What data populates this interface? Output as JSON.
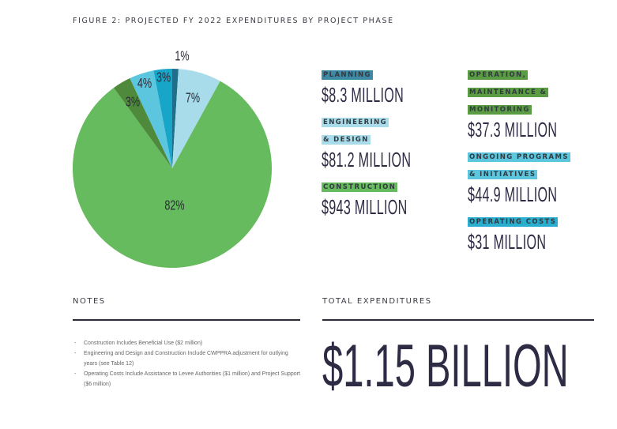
{
  "title": "FIGURE 2: PROJECTED FY 2022 EXPENDITURES BY PROJECT PHASE",
  "chart_data": {
    "type": "pie",
    "title": "FIGURE 2: PROJECTED FY 2022 EXPENDITURES BY PROJECT PHASE",
    "slices": [
      {
        "name": "Planning",
        "label": "1%",
        "value": 1,
        "amount": "$8.3 MILLION",
        "color": "#1f6f8b"
      },
      {
        "name": "Engineering & Design",
        "label": "7%",
        "value": 7,
        "amount": "$81.2 MILLION",
        "color": "#a8dcea"
      },
      {
        "name": "Construction",
        "label": "82%",
        "value": 82,
        "amount": "$943 MILLION",
        "color": "#66bb5e"
      },
      {
        "name": "Operation, Maintenance & Monitoring",
        "label": "3%",
        "value": 3,
        "amount": "$37.3 MILLION",
        "color": "#4f8a3c"
      },
      {
        "name": "Ongoing Programs & Initiatives",
        "label": "4%",
        "value": 4,
        "amount": "$44.9 MILLION",
        "color": "#5cc6df"
      },
      {
        "name": "Operating Costs",
        "label": "3%",
        "value": 3,
        "amount": "$31 MILLION",
        "color": "#17a5c8"
      }
    ]
  },
  "legend": [
    {
      "lines": [
        "PLANNING"
      ],
      "amount": "$8.3 MILLION",
      "color": "#3c8aa6"
    },
    {
      "lines": [
        "ENGINEERING",
        "& DESIGN"
      ],
      "amount": "$81.2 MILLION",
      "color": "#a8dcea"
    },
    {
      "lines": [
        "CONSTRUCTION"
      ],
      "amount": "$943 MILLION",
      "color": "#66bb5e"
    },
    {
      "lines": [
        "OPERATION,",
        "MAINTENANCE &",
        "MONITORING"
      ],
      "amount": "$37.3 MILLION",
      "color": "#5a9c44"
    },
    {
      "lines": [
        "ONGOING PROGRAMS",
        "& INITIATIVES"
      ],
      "amount": "$44.9 MILLION",
      "color": "#5cc6df"
    },
    {
      "lines": [
        "OPERATING COSTS"
      ],
      "amount": "$31 MILLION",
      "color": "#2aaed0"
    }
  ],
  "notes": {
    "heading": "NOTES",
    "items": [
      "Construction Includes Beneficial Use ($2 million)",
      "Engineering and Design and Construction Include CWPPRA adjustment for outlying years (see Table 12)",
      "Operating Costs Include Assistance to Levee Authorities ($1 million) and Project Support ($6 million)"
    ]
  },
  "total": {
    "heading": "TOTAL EXPENDITURES",
    "value": "$1.15 BILLION"
  }
}
